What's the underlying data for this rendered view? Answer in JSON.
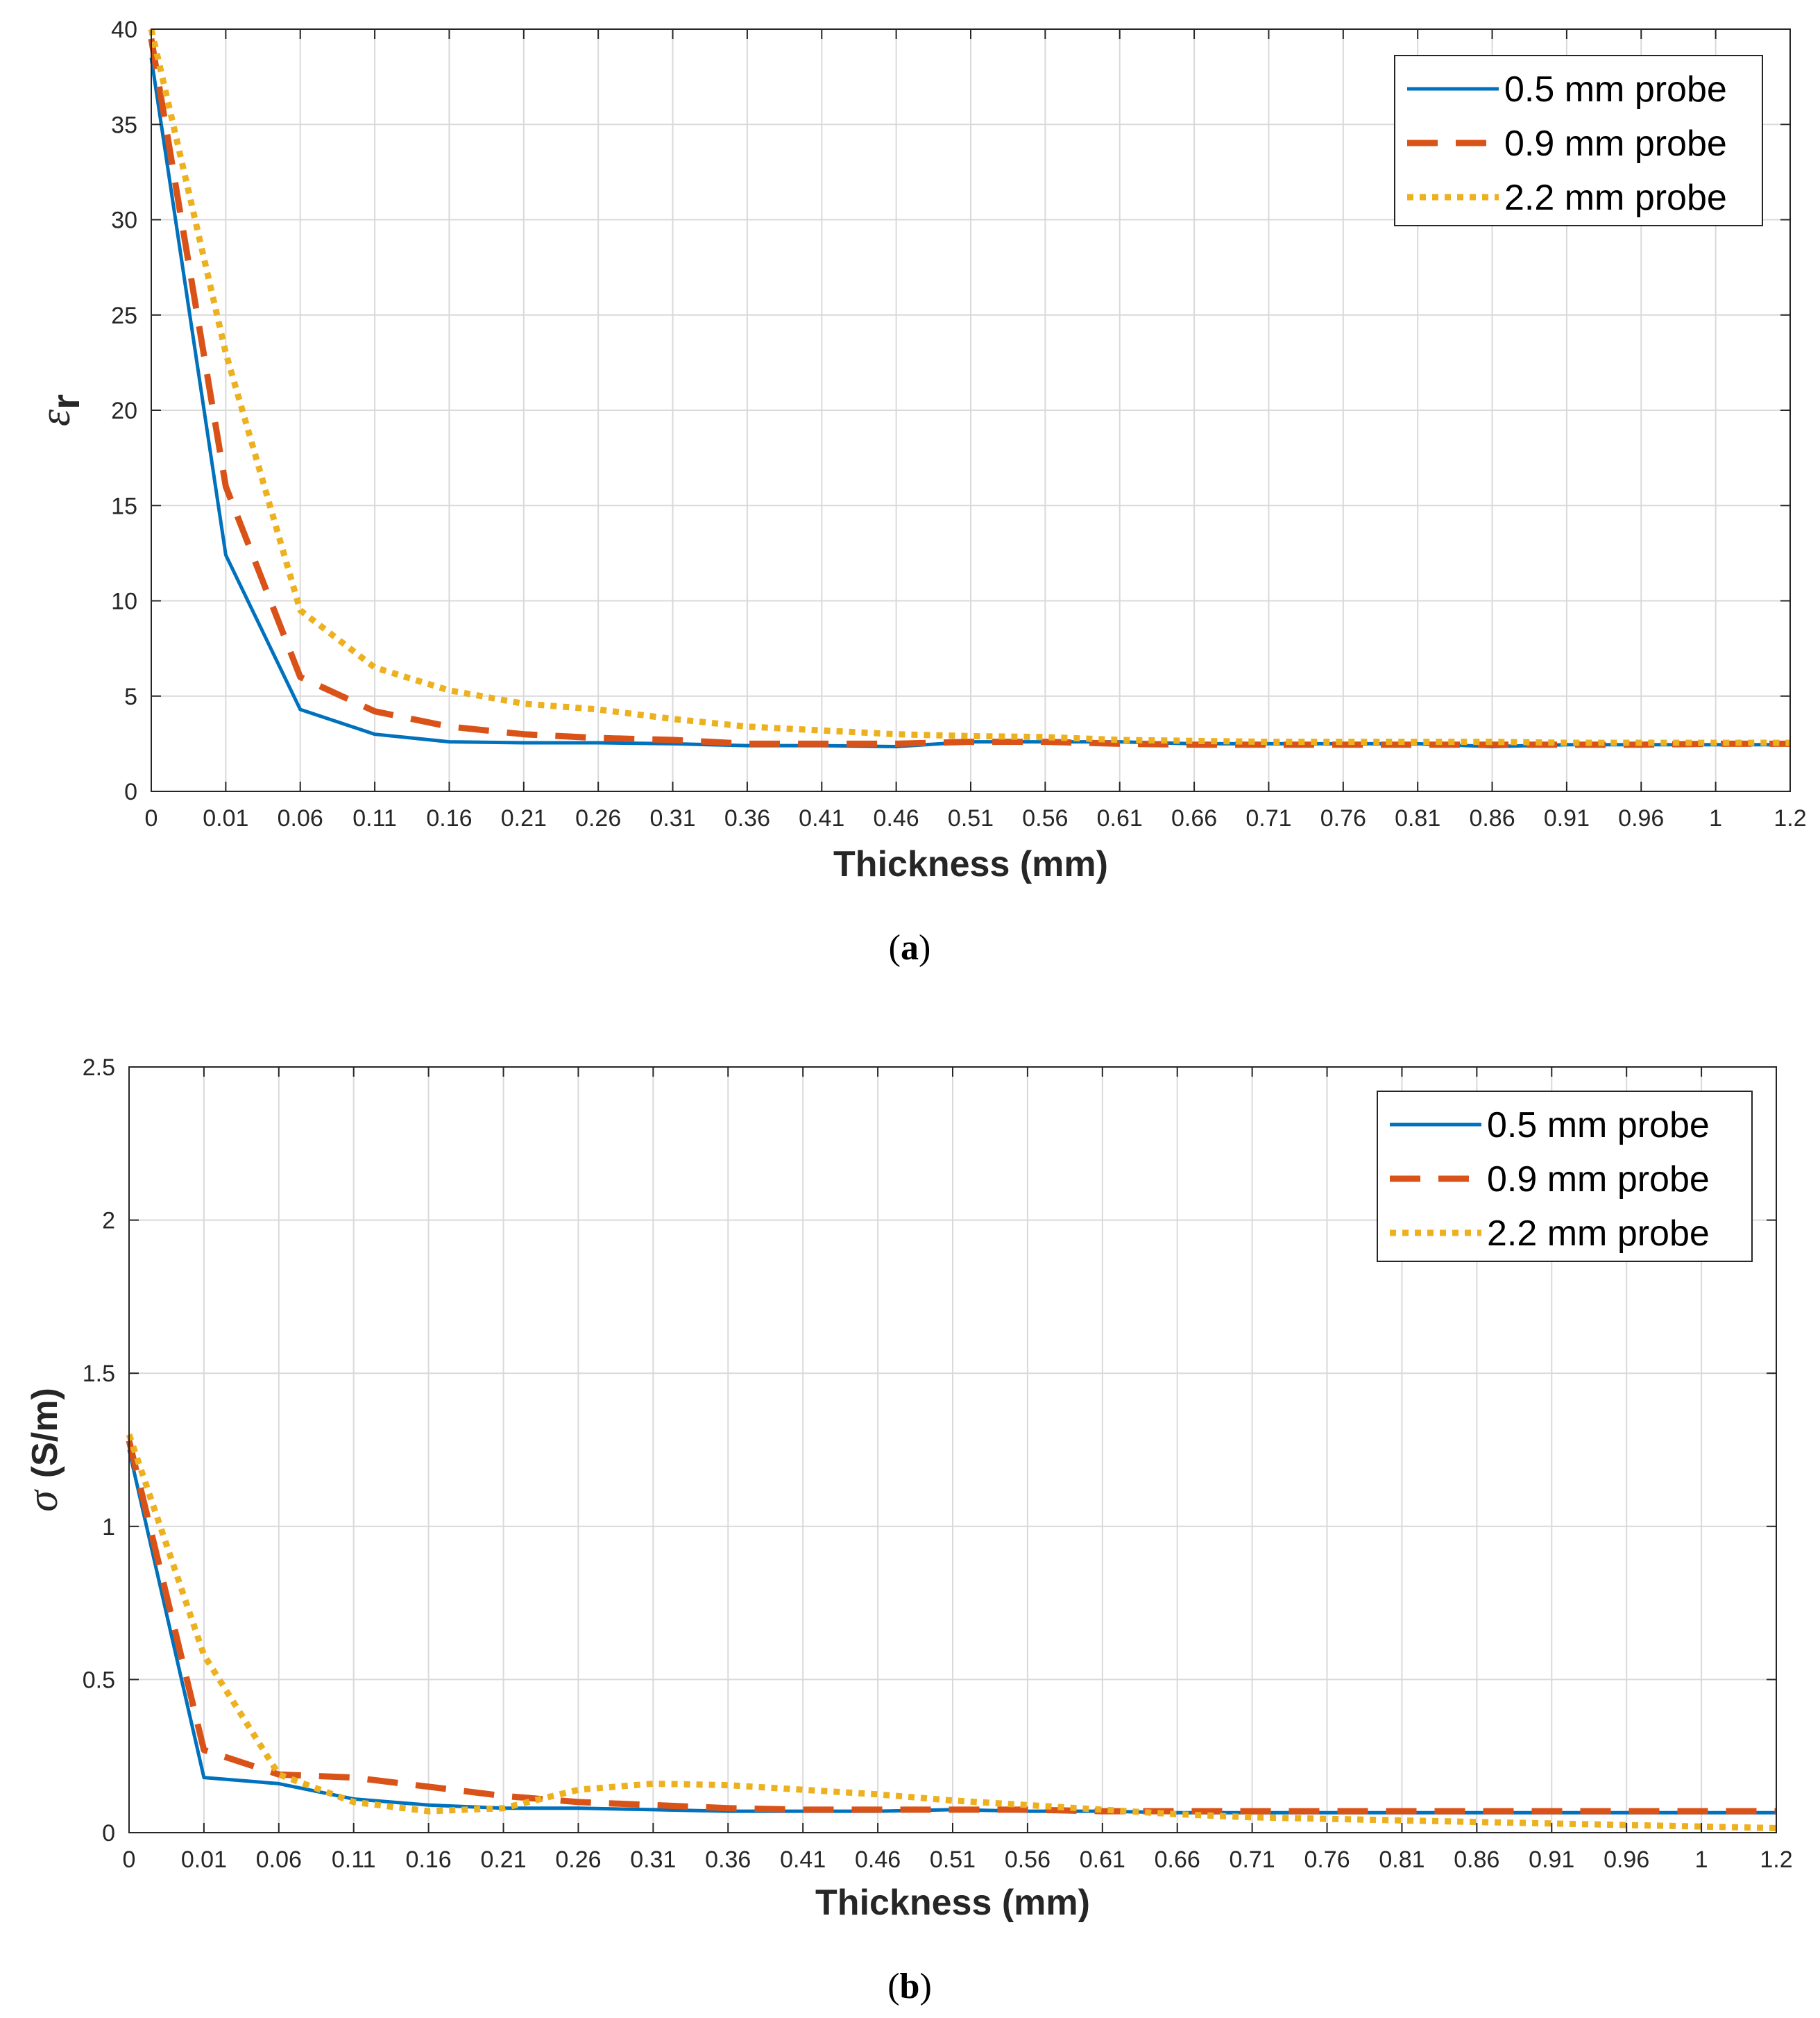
{
  "colors": {
    "series_a": "#0072BD",
    "series_b": "#D95319",
    "series_c": "#EDB120",
    "grid": "#d9d9d9",
    "axis": "#262626"
  },
  "chart_data": [
    {
      "type": "line",
      "caption_open": "(",
      "caption_letter": "a",
      "caption_close": ")",
      "xlabel": "Thickness (mm)",
      "ylabel_symbol": "ε",
      "ylabel_sub": "r",
      "ylim": [
        0,
        40
      ],
      "yticks": [
        0,
        5,
        10,
        15,
        20,
        25,
        30,
        35,
        40
      ],
      "xtick_labels": [
        "0",
        "0.01",
        "0.06",
        "0.11",
        "0.16",
        "0.21",
        "0.26",
        "0.31",
        "0.36",
        "0.41",
        "0.46",
        "0.51",
        "0.56",
        "0.61",
        "0.66",
        "0.71",
        "0.76",
        "0.81",
        "0.86",
        "0.91",
        "0.96",
        "1",
        "1.2"
      ],
      "grid": true,
      "legend_position": "top-right",
      "series": [
        {
          "name": "0.5 mm probe",
          "style": "solid",
          "values": [
            38.5,
            12.4,
            4.3,
            3.0,
            2.6,
            2.55,
            2.55,
            2.5,
            2.4,
            2.4,
            2.35,
            2.6,
            2.6,
            2.6,
            2.5,
            2.5,
            2.5,
            2.5,
            2.35,
            2.45,
            2.45,
            2.45,
            2.45
          ]
        },
        {
          "name": "0.9 mm probe",
          "style": "dashed",
          "values": [
            39.5,
            16.0,
            6.0,
            4.2,
            3.4,
            3.0,
            2.8,
            2.7,
            2.5,
            2.5,
            2.5,
            2.6,
            2.6,
            2.5,
            2.45,
            2.45,
            2.45,
            2.45,
            2.45,
            2.45,
            2.45,
            2.5,
            2.5
          ]
        },
        {
          "name": "2.2 mm probe",
          "style": "dotted",
          "values": [
            40.0,
            23.0,
            9.5,
            6.5,
            5.3,
            4.6,
            4.3,
            3.8,
            3.4,
            3.2,
            3.0,
            2.9,
            2.85,
            2.7,
            2.65,
            2.6,
            2.6,
            2.6,
            2.6,
            2.55,
            2.55,
            2.55,
            2.55
          ]
        }
      ]
    },
    {
      "type": "line",
      "caption_open": "(",
      "caption_letter": "b",
      "caption_close": ")",
      "xlabel": "Thickness (mm)",
      "ylabel_symbol": "σ",
      "ylabel_unit": "(S/m)",
      "ylim": [
        0,
        2.5
      ],
      "yticks": [
        0,
        0.5,
        1,
        1.5,
        2,
        2.5
      ],
      "xtick_labels": [
        "0",
        "0.01",
        "0.06",
        "0.11",
        "0.16",
        "0.21",
        "0.26",
        "0.31",
        "0.36",
        "0.41",
        "0.46",
        "0.51",
        "0.56",
        "0.61",
        "0.66",
        "0.71",
        "0.76",
        "0.81",
        "0.86",
        "0.91",
        "0.96",
        "1",
        "1.2"
      ],
      "grid": true,
      "legend_position": "top-right",
      "series": [
        {
          "name": "0.5 mm probe",
          "style": "solid",
          "values": [
            1.25,
            0.18,
            0.16,
            0.11,
            0.09,
            0.08,
            0.08,
            0.075,
            0.07,
            0.07,
            0.07,
            0.075,
            0.07,
            0.07,
            0.065,
            0.065,
            0.065,
            0.065,
            0.065,
            0.065,
            0.065,
            0.065,
            0.065
          ]
        },
        {
          "name": "0.9 mm probe",
          "style": "dashed",
          "values": [
            1.28,
            0.27,
            0.19,
            0.18,
            0.15,
            0.12,
            0.1,
            0.09,
            0.08,
            0.075,
            0.075,
            0.075,
            0.075,
            0.07,
            0.07,
            0.07,
            0.07,
            0.07,
            0.07,
            0.07,
            0.07,
            0.07,
            0.07
          ]
        },
        {
          "name": "2.2 mm probe",
          "style": "dotted",
          "values": [
            1.3,
            0.58,
            0.19,
            0.1,
            0.07,
            0.08,
            0.14,
            0.16,
            0.155,
            0.14,
            0.125,
            0.105,
            0.09,
            0.075,
            0.06,
            0.05,
            0.045,
            0.04,
            0.035,
            0.03,
            0.025,
            0.02,
            0.015
          ]
        }
      ]
    }
  ]
}
